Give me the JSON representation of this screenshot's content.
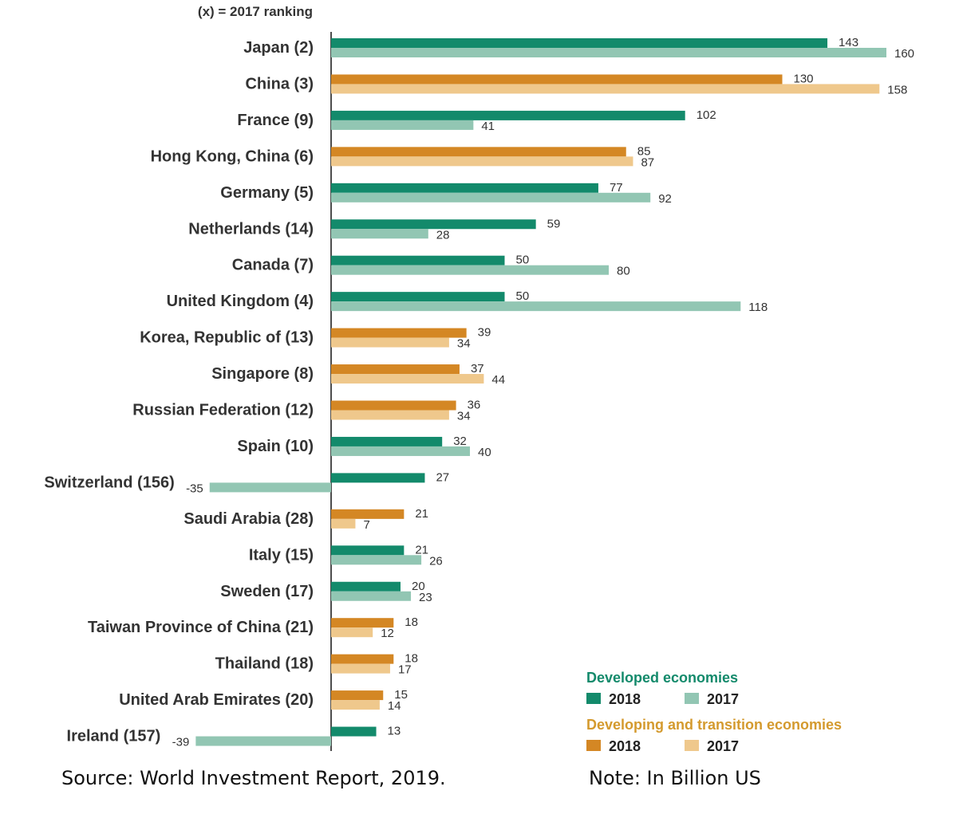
{
  "chart_data": {
    "type": "bar",
    "orientation": "horizontal",
    "note_top": "(x) = 2017 ranking",
    "categories": [
      "Japan (2)",
      "China (3)",
      "France (9)",
      "Hong Kong, China (6)",
      "Germany (5)",
      "Netherlands (14)",
      "Canada (7)",
      "United Kingdom (4)",
      "Korea, Republic of (13)",
      "Singapore (8)",
      "Russian Federation (12)",
      "Spain (10)",
      "Switzerland (156)",
      "Saudi Arabia (28)",
      "Italy (15)",
      "Sweden (17)",
      "Taiwan Province of China (21)",
      "Thailand (18)",
      "United Arab Emirates (20)",
      "Ireland (157)"
    ],
    "group": [
      "developed",
      "developing",
      "developed",
      "developing",
      "developed",
      "developed",
      "developed",
      "developed",
      "developing",
      "developing",
      "developing",
      "developed",
      "developed",
      "developing",
      "developed",
      "developed",
      "developing",
      "developing",
      "developing",
      "developed"
    ],
    "series": [
      {
        "name": "2018",
        "values": [
          143,
          130,
          102,
          85,
          77,
          59,
          50,
          50,
          39,
          37,
          36,
          32,
          27,
          21,
          21,
          20,
          18,
          18,
          15,
          13
        ]
      },
      {
        "name": "2017",
        "values": [
          160,
          158,
          41,
          87,
          92,
          28,
          80,
          118,
          34,
          44,
          34,
          40,
          -35,
          7,
          26,
          23,
          12,
          17,
          14,
          -39
        ]
      }
    ],
    "colors": {
      "developed_2018": "#138a6b",
      "developed_2017": "#92c6b3",
      "developing_2018": "#d48724",
      "developing_2017": "#efc88c",
      "developed_title": "#138a6b",
      "developing_title": "#d49a2e"
    },
    "legend": {
      "position": "bottom-right",
      "developed_title": "Developed economies",
      "developing_title": "Developing and  transition economies",
      "label_2018": "2018",
      "label_2017": "2017"
    },
    "source": "Source: World Investment Report, 2019.",
    "note": "Note: In Billion US"
  }
}
